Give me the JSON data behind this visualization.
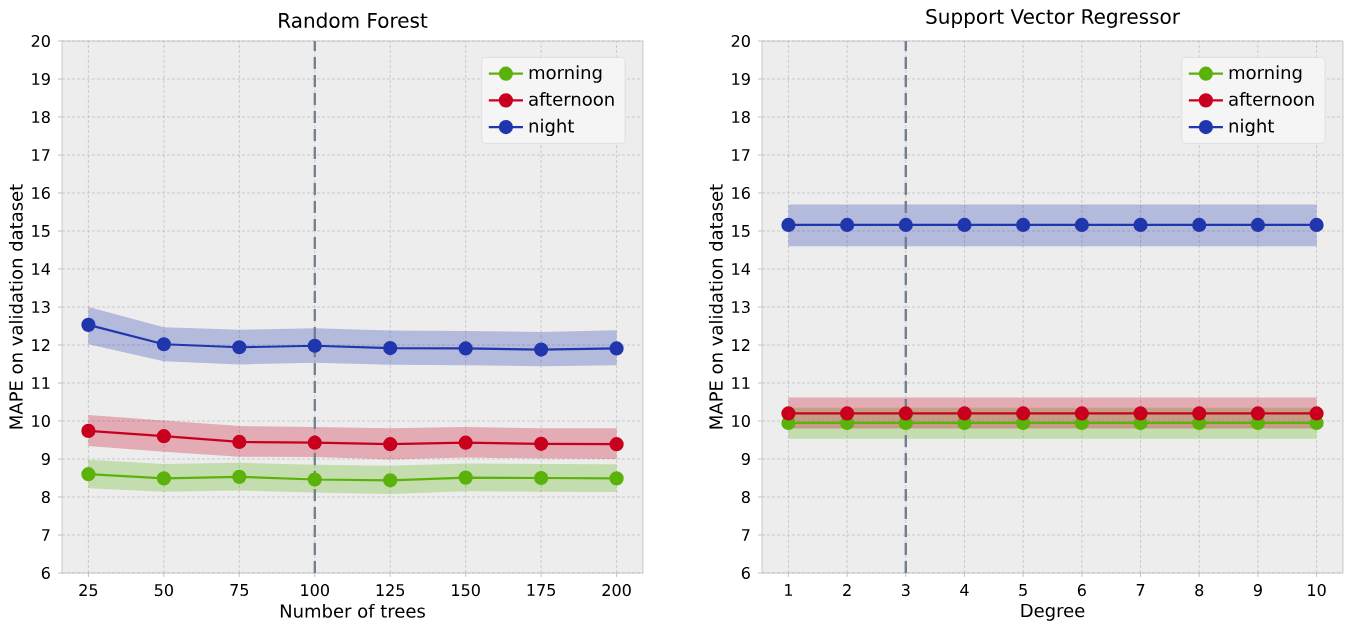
{
  "chart_data": [
    {
      "type": "line",
      "title": "Random Forest",
      "xlabel": "Number of trees",
      "ylabel": "MAPE on validation dataset",
      "x": [
        25,
        50,
        75,
        100,
        125,
        150,
        175,
        200
      ],
      "xlim": [
        16.25,
        208.75
      ],
      "xticks": [
        25,
        50,
        75,
        100,
        125,
        150,
        175,
        200
      ],
      "ylim": [
        6,
        20
      ],
      "yticks": [
        6,
        7,
        8,
        9,
        10,
        11,
        12,
        13,
        14,
        15,
        16,
        17,
        18,
        19,
        20
      ],
      "grid": true,
      "legend": "top right",
      "marker": "circle",
      "line_style": "solid",
      "ref_lines": [
        {
          "axis": "x",
          "value": 100,
          "color": "#708090",
          "line_style": "dashed"
        }
      ],
      "series": [
        {
          "name": "morning",
          "color": "#5ab20a",
          "values": [
            8.6,
            8.49,
            8.53,
            8.46,
            8.44,
            8.51,
            8.5,
            8.49
          ],
          "lower": [
            8.23,
            8.14,
            8.17,
            8.12,
            8.08,
            8.15,
            8.14,
            8.13
          ],
          "upper": [
            8.98,
            8.87,
            8.9,
            8.85,
            8.82,
            8.88,
            8.87,
            8.86
          ]
        },
        {
          "name": "afternoon",
          "color": "#c8001e",
          "values": [
            9.74,
            9.6,
            9.45,
            9.43,
            9.39,
            9.43,
            9.4,
            9.39
          ],
          "lower": [
            9.34,
            9.19,
            9.06,
            9.05,
            8.99,
            9.04,
            9.01,
            9.0
          ],
          "upper": [
            10.16,
            10.01,
            9.87,
            9.84,
            9.81,
            9.84,
            9.81,
            9.81
          ]
        },
        {
          "name": "night",
          "color": "#2036ac",
          "values": [
            12.53,
            12.02,
            11.94,
            11.98,
            11.92,
            11.91,
            11.88,
            11.91
          ],
          "lower": [
            12.02,
            11.57,
            11.49,
            11.53,
            11.48,
            11.47,
            11.44,
            11.47
          ],
          "upper": [
            13.0,
            12.47,
            12.4,
            12.44,
            12.38,
            12.37,
            12.34,
            12.39
          ]
        }
      ]
    },
    {
      "type": "line",
      "title": "Support Vector Regressor",
      "xlabel": "Degree",
      "ylabel": "MAPE on validation dataset",
      "x": [
        1,
        2,
        3,
        4,
        5,
        6,
        7,
        8,
        9,
        10
      ],
      "xlim": [
        0.55,
        10.45
      ],
      "xticks": [
        1,
        2,
        3,
        4,
        5,
        6,
        7,
        8,
        9,
        10
      ],
      "ylim": [
        6,
        20
      ],
      "yticks": [
        6,
        7,
        8,
        9,
        10,
        11,
        12,
        13,
        14,
        15,
        16,
        17,
        18,
        19,
        20
      ],
      "grid": true,
      "legend": "top right",
      "marker": "circle",
      "line_style": "solid",
      "ref_lines": [
        {
          "axis": "x",
          "value": 3,
          "color": "#708090",
          "line_style": "dashed"
        }
      ],
      "series": [
        {
          "name": "morning",
          "color": "#5ab20a",
          "values": [
            9.95,
            9.95,
            9.95,
            9.95,
            9.95,
            9.95,
            9.95,
            9.95,
            9.95,
            9.95
          ],
          "lower": [
            9.53,
            9.53,
            9.53,
            9.53,
            9.53,
            9.53,
            9.53,
            9.53,
            9.53,
            9.53
          ],
          "upper": [
            10.35,
            10.35,
            10.35,
            10.35,
            10.35,
            10.35,
            10.35,
            10.35,
            10.35,
            10.35
          ]
        },
        {
          "name": "afternoon",
          "color": "#c8001e",
          "values": [
            10.2,
            10.2,
            10.2,
            10.2,
            10.2,
            10.2,
            10.2,
            10.2,
            10.2,
            10.2
          ],
          "lower": [
            9.8,
            9.8,
            9.8,
            9.8,
            9.8,
            9.8,
            9.8,
            9.8,
            9.8,
            9.8
          ],
          "upper": [
            10.62,
            10.62,
            10.62,
            10.62,
            10.62,
            10.62,
            10.62,
            10.62,
            10.62,
            10.62
          ]
        },
        {
          "name": "night",
          "color": "#2036ac",
          "values": [
            15.16,
            15.16,
            15.16,
            15.16,
            15.16,
            15.16,
            15.16,
            15.16,
            15.16,
            15.16
          ],
          "lower": [
            14.6,
            14.6,
            14.6,
            14.6,
            14.6,
            14.6,
            14.6,
            14.6,
            14.6,
            14.6
          ],
          "upper": [
            15.7,
            15.7,
            15.7,
            15.7,
            15.7,
            15.7,
            15.7,
            15.7,
            15.7,
            15.7
          ]
        }
      ]
    }
  ]
}
